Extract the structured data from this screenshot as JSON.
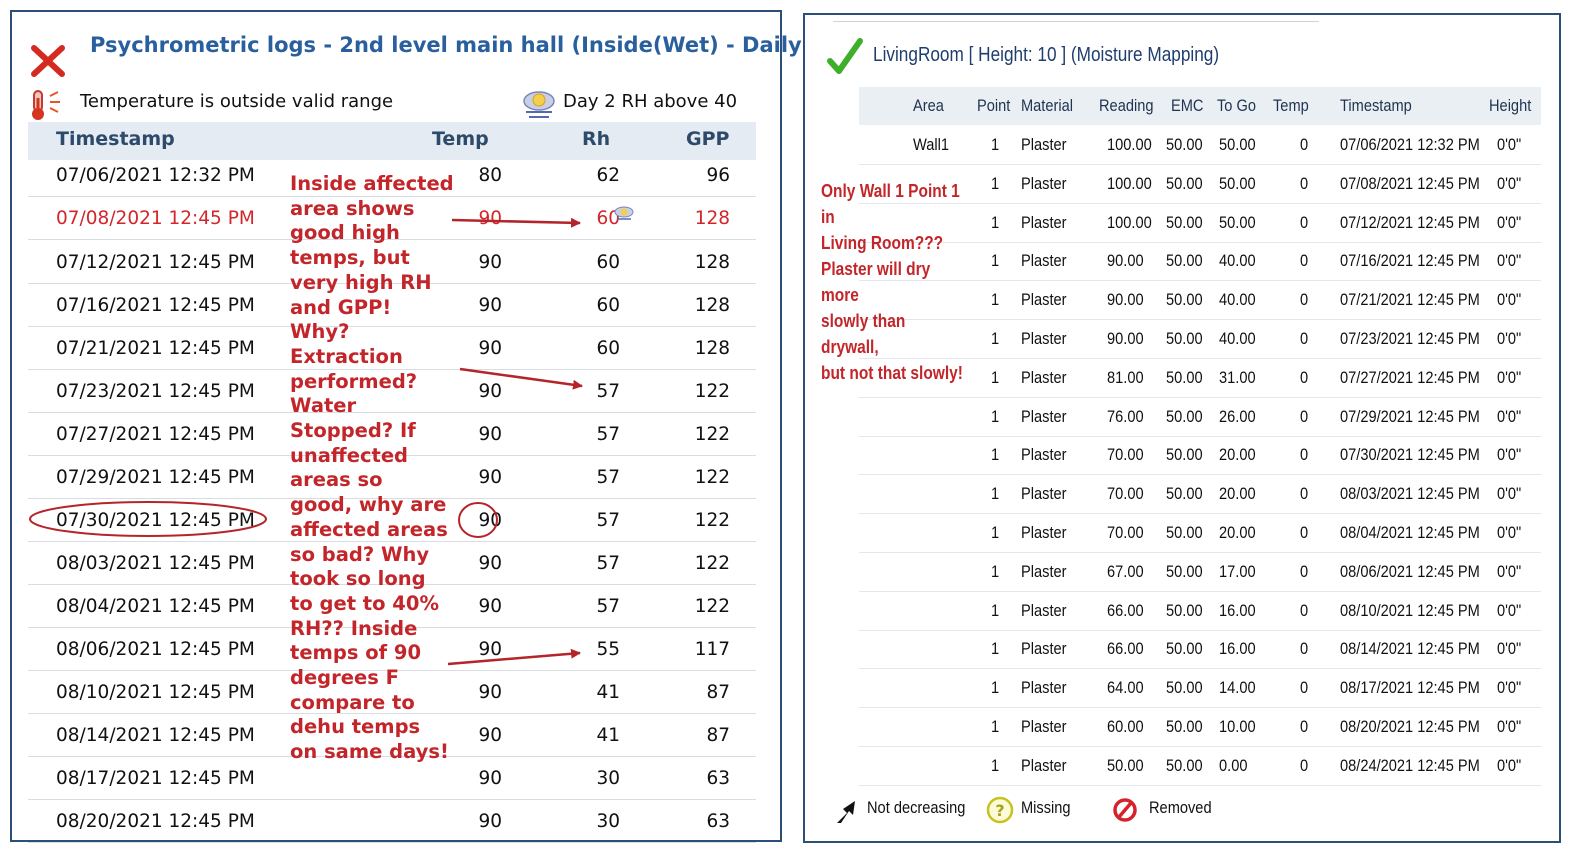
{
  "left_panel": {
    "title": "Psychrometric logs - 2nd level main hall (Inside(Wet) - Daily",
    "warning_text": "Temperature is outside valid range",
    "alert_text": "Day 2 RH above 40",
    "columns": {
      "timestamp": "Timestamp",
      "temp": "Temp",
      "rh": "Rh",
      "gpp": "GPP"
    },
    "rows": [
      {
        "timestamp": "07/06/2021 12:32 PM",
        "temp": "80",
        "rh": "62",
        "gpp": "96"
      },
      {
        "timestamp": "07/08/2021 12:45 PM",
        "temp": "90",
        "rh": "60",
        "gpp": "128"
      },
      {
        "timestamp": "07/12/2021 12:45 PM",
        "temp": "90",
        "rh": "60",
        "gpp": "128"
      },
      {
        "timestamp": "07/16/2021 12:45 PM",
        "temp": "90",
        "rh": "60",
        "gpp": "128"
      },
      {
        "timestamp": "07/21/2021 12:45 PM",
        "temp": "90",
        "rh": "60",
        "gpp": "128"
      },
      {
        "timestamp": "07/23/2021 12:45 PM",
        "temp": "90",
        "rh": "57",
        "gpp": "122"
      },
      {
        "timestamp": "07/27/2021 12:45 PM",
        "temp": "90",
        "rh": "57",
        "gpp": "122"
      },
      {
        "timestamp": "07/29/2021 12:45 PM",
        "temp": "90",
        "rh": "57",
        "gpp": "122"
      },
      {
        "timestamp": "07/30/2021 12:45 PM",
        "temp": "90",
        "rh": "57",
        "gpp": "122"
      },
      {
        "timestamp": "08/03/2021 12:45 PM",
        "temp": "90",
        "rh": "57",
        "gpp": "122"
      },
      {
        "timestamp": "08/04/2021 12:45 PM",
        "temp": "90",
        "rh": "57",
        "gpp": "122"
      },
      {
        "timestamp": "08/06/2021 12:45 PM",
        "temp": "90",
        "rh": "55",
        "gpp": "117"
      },
      {
        "timestamp": "08/10/2021 12:45 PM",
        "temp": "90",
        "rh": "41",
        "gpp": "87"
      },
      {
        "timestamp": "08/14/2021 12:45 PM",
        "temp": "90",
        "rh": "41",
        "gpp": "87"
      },
      {
        "timestamp": "08/17/2021 12:45 PM",
        "temp": "90",
        "rh": "30",
        "gpp": "63"
      },
      {
        "timestamp": "08/20/2021 12:45 PM",
        "temp": "90",
        "rh": "30",
        "gpp": "63"
      }
    ],
    "highlight_row_color": "#d2262a",
    "annotation_lines": [
      "Inside affected",
      "area shows",
      "good high",
      "temps, but",
      "very high RH",
      "and GPP!",
      "Why?",
      "Extraction",
      "performed?",
      "Water",
      "Stopped?  If",
      "unaffected",
      "areas so",
      "good, why are",
      "affected areas",
      "so bad?  Why",
      "took so long",
      "to get to 40%",
      "RH??  Inside",
      "temps of 90",
      "degrees F",
      "compare to",
      "dehu temps",
      "on same days!"
    ],
    "icons": {
      "close": "x-icon",
      "thermometer": "thermometer-icon",
      "weather": "cloud-icon"
    }
  },
  "right_panel": {
    "title": "LivingRoom [ Height: 10 ] (Moisture Mapping)",
    "columns": {
      "area": "Area",
      "point": "Point",
      "material": "Material",
      "reading": "Reading",
      "emc": "EMC",
      "togo": "To Go",
      "temp": "Temp",
      "timestamp": "Timestamp",
      "height": "Height"
    },
    "rows": [
      {
        "area": "Wall1",
        "point": "1",
        "material": "Plaster",
        "reading": "100.00",
        "emc": "50.00",
        "togo": "50.00",
        "temp": "0",
        "timestamp": "07/06/2021 12:32 PM",
        "height": "0'0\""
      },
      {
        "area": "",
        "point": "1",
        "material": "Plaster",
        "reading": "100.00",
        "emc": "50.00",
        "togo": "50.00",
        "temp": "0",
        "timestamp": "07/08/2021 12:45 PM",
        "height": "0'0\""
      },
      {
        "area": "",
        "point": "1",
        "material": "Plaster",
        "reading": "100.00",
        "emc": "50.00",
        "togo": "50.00",
        "temp": "0",
        "timestamp": "07/12/2021 12:45 PM",
        "height": "0'0\""
      },
      {
        "area": "",
        "point": "1",
        "material": "Plaster",
        "reading": "90.00",
        "emc": "50.00",
        "togo": "40.00",
        "temp": "0",
        "timestamp": "07/16/2021 12:45 PM",
        "height": "0'0\""
      },
      {
        "area": "",
        "point": "1",
        "material": "Plaster",
        "reading": "90.00",
        "emc": "50.00",
        "togo": "40.00",
        "temp": "0",
        "timestamp": "07/21/2021 12:45 PM",
        "height": "0'0\""
      },
      {
        "area": "",
        "point": "1",
        "material": "Plaster",
        "reading": "90.00",
        "emc": "50.00",
        "togo": "40.00",
        "temp": "0",
        "timestamp": "07/23/2021 12:45 PM",
        "height": "0'0\""
      },
      {
        "area": "",
        "point": "1",
        "material": "Plaster",
        "reading": "81.00",
        "emc": "50.00",
        "togo": "31.00",
        "temp": "0",
        "timestamp": "07/27/2021 12:45 PM",
        "height": "0'0\""
      },
      {
        "area": "",
        "point": "1",
        "material": "Plaster",
        "reading": "76.00",
        "emc": "50.00",
        "togo": "26.00",
        "temp": "0",
        "timestamp": "07/29/2021 12:45 PM",
        "height": "0'0\""
      },
      {
        "area": "",
        "point": "1",
        "material": "Plaster",
        "reading": "70.00",
        "emc": "50.00",
        "togo": "20.00",
        "temp": "0",
        "timestamp": "07/30/2021 12:45 PM",
        "height": "0'0\""
      },
      {
        "area": "",
        "point": "1",
        "material": "Plaster",
        "reading": "70.00",
        "emc": "50.00",
        "togo": "20.00",
        "temp": "0",
        "timestamp": "08/03/2021 12:45 PM",
        "height": "0'0\""
      },
      {
        "area": "",
        "point": "1",
        "material": "Plaster",
        "reading": "70.00",
        "emc": "50.00",
        "togo": "20.00",
        "temp": "0",
        "timestamp": "08/04/2021 12:45 PM",
        "height": "0'0\""
      },
      {
        "area": "",
        "point": "1",
        "material": "Plaster",
        "reading": "67.00",
        "emc": "50.00",
        "togo": "17.00",
        "temp": "0",
        "timestamp": "08/06/2021 12:45 PM",
        "height": "0'0\""
      },
      {
        "area": "",
        "point": "1",
        "material": "Plaster",
        "reading": "66.00",
        "emc": "50.00",
        "togo": "16.00",
        "temp": "0",
        "timestamp": "08/10/2021 12:45 PM",
        "height": "0'0\""
      },
      {
        "area": "",
        "point": "1",
        "material": "Plaster",
        "reading": "66.00",
        "emc": "50.00",
        "togo": "16.00",
        "temp": "0",
        "timestamp": "08/14/2021 12:45 PM",
        "height": "0'0\""
      },
      {
        "area": "",
        "point": "1",
        "material": "Plaster",
        "reading": "64.00",
        "emc": "50.00",
        "togo": "14.00",
        "temp": "0",
        "timestamp": "08/17/2021 12:45 PM",
        "height": "0'0\""
      },
      {
        "area": "",
        "point": "1",
        "material": "Plaster",
        "reading": "60.00",
        "emc": "50.00",
        "togo": "10.00",
        "temp": "0",
        "timestamp": "08/20/2021 12:45 PM",
        "height": "0'0\""
      },
      {
        "area": "",
        "point": "1",
        "material": "Plaster",
        "reading": "50.00",
        "emc": "50.00",
        "togo": "0.00",
        "temp": "0",
        "timestamp": "08/24/2021 12:45 PM",
        "height": "0'0\""
      }
    ],
    "annotation_lines": [
      "Only Wall 1 Point 1 in",
      "Living Room???",
      "Plaster will dry more",
      "slowly than drywall,",
      "but not that slowly!"
    ],
    "legend": {
      "not_decreasing": "Not decreasing",
      "missing": "Missing",
      "removed": "Removed"
    },
    "icons": {
      "status": "checkmark-icon",
      "not_decreasing": "arrow-icon",
      "missing": "question-icon",
      "removed": "prohibited-icon"
    }
  },
  "colors": {
    "title_blue": "#2a5f9e",
    "annotation_red": "#c3262a",
    "header_bg": "#e4ebf2",
    "frame": "#2c4f7a",
    "check_green": "#3fae2a"
  }
}
